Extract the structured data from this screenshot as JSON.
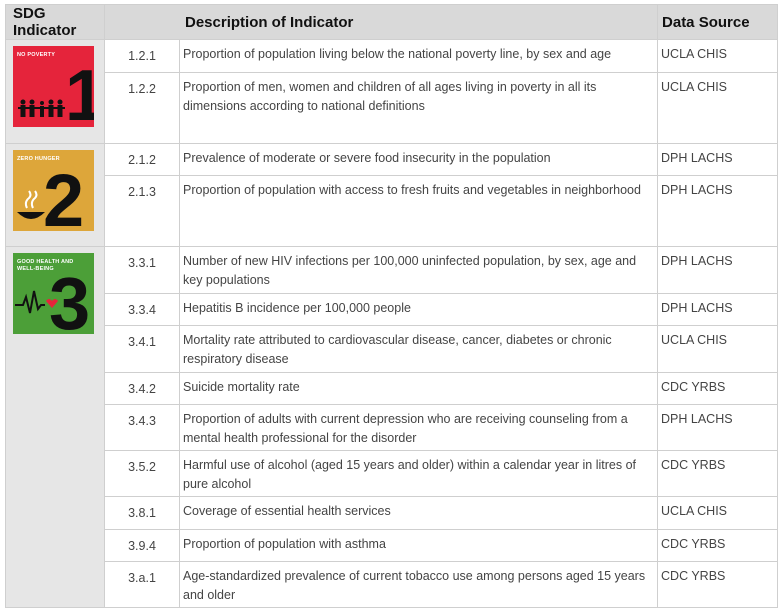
{
  "headers": {
    "sdg": "SDG Indicator",
    "description": "Description of Indicator",
    "source": "Data Source"
  },
  "goals": [
    {
      "label": "NO POVERTY",
      "number": "1",
      "color": "#e5243b"
    },
    {
      "label": "ZERO HUNGER",
      "number": "2",
      "color": "#dda63a"
    },
    {
      "label": "GOOD HEALTH AND WELL-BEING",
      "number": "3",
      "color": "#4c9f38"
    }
  ],
  "rows": [
    {
      "code": "1.2.1",
      "desc": "Proportion of population living below the national poverty line, by sex and age",
      "source": "UCLA CHIS"
    },
    {
      "code": "1.2.2",
      "desc": "Proportion of men, women and children of all ages living in poverty in all its dimensions according to national definitions",
      "source": "UCLA CHIS"
    },
    {
      "code": "2.1.2",
      "desc": "Prevalence of moderate or severe food insecurity in the population",
      "source": "DPH LACHS"
    },
    {
      "code": "2.1.3",
      "desc": "Proportion of population with access to fresh fruits and vegetables in neighborhood",
      "source": "DPH LACHS"
    },
    {
      "code": "3.3.1",
      "desc": "Number of new HIV infections per 100,000 uninfected population, by sex, age and key populations",
      "source": "DPH LACHS"
    },
    {
      "code": "3.3.4",
      "desc": "Hepatitis B incidence per 100,000 people",
      "source": "DPH LACHS"
    },
    {
      "code": "3.4.1",
      "desc": "Mortality rate attributed to cardiovascular disease, cancer, diabetes or chronic respiratory disease",
      "source": "UCLA CHIS"
    },
    {
      "code": "3.4.2",
      "desc": "Suicide mortality rate",
      "source": "CDC YRBS"
    },
    {
      "code": "3.4.3",
      "desc": "Proportion of adults with current depression who are receiving counseling from a mental health professional for the disorder",
      "source": "DPH LACHS"
    },
    {
      "code": "3.5.2",
      "desc": "Harmful use of alcohol (aged 15 years and older) within a calendar year in litres of pure alcohol",
      "source": "CDC YRBS"
    },
    {
      "code": "3.8.1",
      "desc": "Coverage of essential health services",
      "source": "UCLA CHIS"
    },
    {
      "code": "3.9.4",
      "desc": "Proportion of population with asthma",
      "source": "CDC YRBS"
    },
    {
      "code": "3.a.1",
      "desc": "Age-standardized prevalence of current tobacco use among persons aged 15 years and older",
      "source": "CDC YRBS"
    }
  ]
}
